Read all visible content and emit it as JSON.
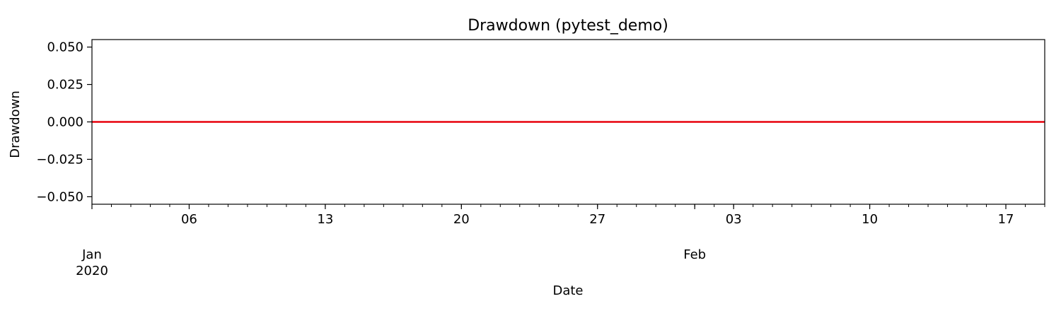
{
  "chart_data": {
    "type": "line",
    "title": "Drawdown (pytest_demo)",
    "xlabel": "Date",
    "ylabel": "Drawdown",
    "xlim": [
      "2020-01-01",
      "2020-02-19"
    ],
    "ylim": [
      -0.055,
      0.055
    ],
    "x_ticks": [
      {
        "date": "2020-01-06",
        "label": "06"
      },
      {
        "date": "2020-01-13",
        "label": "13"
      },
      {
        "date": "2020-01-20",
        "label": "20"
      },
      {
        "date": "2020-01-27",
        "label": "27"
      },
      {
        "date": "2020-02-03",
        "label": "03"
      },
      {
        "date": "2020-02-10",
        "label": "10"
      },
      {
        "date": "2020-02-17",
        "label": "17"
      }
    ],
    "x_month_labels": [
      {
        "date": "2020-01-01",
        "label": "Jan",
        "year": "2020"
      },
      {
        "date": "2020-02-01",
        "label": "Feb",
        "year": ""
      }
    ],
    "y_ticks": [
      {
        "value": 0.05,
        "label": "0.050"
      },
      {
        "value": 0.025,
        "label": "0.025"
      },
      {
        "value": 0.0,
        "label": "0.000"
      },
      {
        "value": -0.025,
        "label": "−0.025"
      },
      {
        "value": -0.05,
        "label": "−0.050"
      }
    ],
    "grid": false,
    "series": [
      {
        "color": "#e8000b",
        "x": [
          "2020-01-01",
          "2020-02-19"
        ],
        "values": [
          0.0,
          0.0
        ]
      }
    ]
  }
}
